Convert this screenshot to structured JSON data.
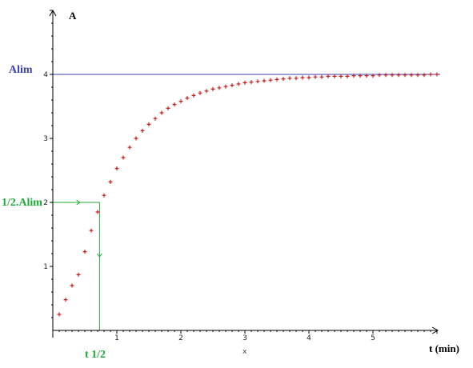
{
  "chart_data": {
    "type": "scatter",
    "xlabel": "t (min)",
    "ylabel": "A",
    "x_axis_marker": "x",
    "xlim": [
      0,
      6.1
    ],
    "ylim": [
      0,
      5
    ],
    "x_ticks": [
      "1",
      "2",
      "3",
      "4",
      "5"
    ],
    "y_ticks": [
      "1",
      "2",
      "3",
      "4"
    ],
    "x_tick_values": [
      1,
      2,
      3,
      4,
      5
    ],
    "y_tick_values": [
      1,
      2,
      3,
      4
    ],
    "grid": false,
    "A_lim": 4,
    "t_half": 0.73,
    "annotations": {
      "alim_label": "Alim",
      "half_alim_label": "1/2.Alim",
      "t_half_label": "t 1/2"
    },
    "colors": {
      "points": "#cc1f1f",
      "alim_line": "#3b3fb0",
      "half_lines": "#1faa3a",
      "axes": "#000000"
    },
    "series": [
      {
        "marker": "plus",
        "x": [
          0.1,
          0.2,
          0.3,
          0.4,
          0.5,
          0.6,
          0.7,
          0.8,
          0.9,
          1.0,
          1.1,
          1.2,
          1.3,
          1.4,
          1.5,
          1.6,
          1.7,
          1.8,
          1.9,
          2.0,
          2.1,
          2.2,
          2.3,
          2.4,
          2.5,
          2.6,
          2.7,
          2.8,
          2.9,
          3.0,
          3.1,
          3.2,
          3.3,
          3.4,
          3.5,
          3.6,
          3.7,
          3.8,
          3.9,
          4.0,
          4.1,
          4.2,
          4.3,
          4.4,
          4.5,
          4.6,
          4.7,
          4.8,
          4.9,
          5.0,
          5.1,
          5.2,
          5.3,
          5.4,
          5.5,
          5.6,
          5.7,
          5.8,
          5.9,
          6.0
        ],
        "y": [
          0.25,
          0.48,
          0.7,
          0.87,
          1.23,
          1.56,
          1.85,
          2.11,
          2.32,
          2.53,
          2.7,
          2.86,
          3.0,
          3.12,
          3.22,
          3.31,
          3.4,
          3.47,
          3.53,
          3.58,
          3.63,
          3.67,
          3.71,
          3.74,
          3.77,
          3.79,
          3.81,
          3.83,
          3.85,
          3.87,
          3.88,
          3.89,
          3.9,
          3.91,
          3.92,
          3.93,
          3.94,
          3.94,
          3.95,
          3.95,
          3.96,
          3.96,
          3.97,
          3.97,
          3.97,
          3.97,
          3.98,
          3.98,
          3.98,
          3.98,
          3.99,
          3.99,
          3.99,
          3.99,
          3.99,
          3.99,
          3.99,
          3.99,
          4.0,
          4.0
        ]
      }
    ]
  }
}
